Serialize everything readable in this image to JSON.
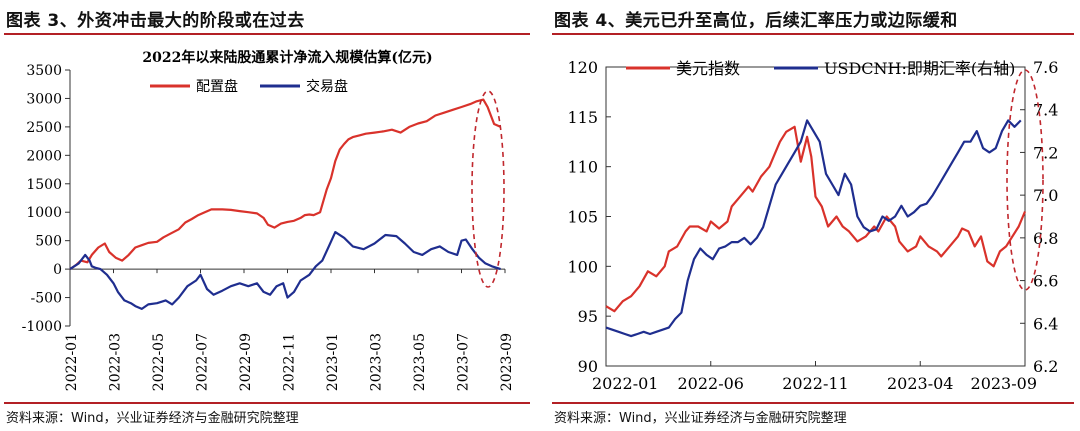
{
  "left": {
    "figure_title": "图表 3、外资冲击最大的阶段或在过去",
    "source": "资料来源：Wind，兴业证券经济与金融研究院整理"
  },
  "right": {
    "figure_title": "图表 4、美元已升至高位，后续汇率压力或边际缓和",
    "source": "资料来源：Wind，兴业证券经济与金融研究院整理"
  },
  "colors": {
    "red": "#d9322b",
    "blue": "#1f2e8f",
    "rule": "#b32025",
    "axis": "#333333"
  },
  "chart_data": [
    {
      "type": "line",
      "title": "2022年以来陆股通累计净流入规模估算(亿元)",
      "xlabel": "",
      "ylabel": "",
      "ylim": [
        -1000,
        3500
      ],
      "yticks": [
        -1000,
        -500,
        0,
        500,
        1000,
        1500,
        2000,
        2500,
        3000,
        3500
      ],
      "x_tick_labels": [
        "2022-01",
        "2022-03",
        "2022-05",
        "2022-07",
        "2022-09",
        "2022-11",
        "2023-01",
        "2023-03",
        "2023-05",
        "2023-07",
        "2023-09"
      ],
      "x_range_months": [
        0,
        20
      ],
      "legend": [
        "配置盘",
        "交易盘"
      ],
      "legend_position": "top-center",
      "annotation": "dashed ellipse highlighting recent period (2023-08 to 2023-09)",
      "series": [
        {
          "name": "配置盘",
          "color": "#d9322b",
          "x": [
            0,
            0.3,
            0.5,
            0.8,
            1.0,
            1.3,
            1.6,
            1.8,
            2.1,
            2.4,
            2.7,
            3.0,
            3.3,
            3.6,
            4.0,
            4.3,
            4.6,
            5.0,
            5.3,
            5.6,
            5.9,
            6.2,
            6.5,
            7.0,
            7.4,
            7.8,
            8.2,
            8.6,
            8.9,
            9.1,
            9.4,
            9.7,
            10.0,
            10.3,
            10.6,
            10.8,
            11.0,
            11.2,
            11.5,
            11.8,
            12.0,
            12.2,
            12.4,
            12.6,
            12.8,
            13.0,
            13.3,
            13.6,
            14.0,
            14.4,
            14.8,
            15.2,
            15.6,
            16.0,
            16.4,
            16.8,
            17.2,
            17.6,
            18.0,
            18.4,
            18.7,
            19.0,
            19.2,
            19.5,
            19.8
          ],
          "values": [
            0,
            80,
            150,
            120,
            250,
            380,
            450,
            300,
            200,
            150,
            250,
            380,
            420,
            460,
            480,
            560,
            620,
            700,
            820,
            880,
            950,
            1000,
            1050,
            1050,
            1040,
            1020,
            1000,
            980,
            900,
            780,
            730,
            800,
            830,
            850,
            900,
            950,
            960,
            950,
            1000,
            1400,
            1600,
            1900,
            2100,
            2200,
            2280,
            2320,
            2350,
            2380,
            2400,
            2420,
            2450,
            2400,
            2500,
            2560,
            2600,
            2700,
            2750,
            2800,
            2850,
            2900,
            2950,
            2980,
            2850,
            2550,
            2500
          ]
        },
        {
          "name": "交易盘",
          "color": "#1f2e8f",
          "x": [
            0,
            0.4,
            0.7,
            0.9,
            1.0,
            1.2,
            1.4,
            1.7,
            2.0,
            2.2,
            2.5,
            2.8,
            3.0,
            3.3,
            3.6,
            4.0,
            4.4,
            4.7,
            5.0,
            5.4,
            5.8,
            6.0,
            6.3,
            6.6,
            7.0,
            7.4,
            7.8,
            8.2,
            8.6,
            8.9,
            9.2,
            9.5,
            9.8,
            10.0,
            10.3,
            10.6,
            11.0,
            11.3,
            11.6,
            11.9,
            12.2,
            12.6,
            13.0,
            13.5,
            14.0,
            14.5,
            15.0,
            15.4,
            15.8,
            16.2,
            16.6,
            17.0,
            17.4,
            17.8,
            18.0,
            18.2,
            18.5,
            18.8,
            19.1,
            19.4,
            19.8
          ],
          "values": [
            0,
            100,
            250,
            150,
            50,
            20,
            0,
            -100,
            -250,
            -400,
            -550,
            -600,
            -650,
            -700,
            -620,
            -600,
            -550,
            -620,
            -500,
            -300,
            -200,
            -100,
            -350,
            -450,
            -380,
            -300,
            -250,
            -300,
            -250,
            -400,
            -450,
            -300,
            -250,
            -500,
            -400,
            -200,
            -100,
            50,
            150,
            400,
            650,
            550,
            400,
            350,
            450,
            600,
            580,
            450,
            300,
            250,
            350,
            400,
            300,
            250,
            500,
            520,
            350,
            200,
            100,
            50,
            0
          ]
        }
      ]
    },
    {
      "type": "line",
      "title": "",
      "xlabel": "",
      "ylabel": "",
      "y2label": "",
      "ylim": [
        90,
        120
      ],
      "yticks": [
        90,
        95,
        100,
        105,
        110,
        115,
        120
      ],
      "y2lim": [
        6.2,
        7.6
      ],
      "y2ticks": [
        6.2,
        6.4,
        6.6,
        6.8,
        7.0,
        7.2,
        7.4,
        7.6
      ],
      "x_tick_labels": [
        "2022-01",
        "2022-06",
        "2022-11",
        "2023-04",
        "2023-09"
      ],
      "x_range_months": [
        0,
        20
      ],
      "legend": [
        "美元指数",
        "USDCNH:即期汇率(右轴)"
      ],
      "legend_position": "top-center",
      "annotation": "dashed ellipse highlighting recent period (2023-08 to 2023-09)",
      "series": [
        {
          "name": "美元指数",
          "axis": "left",
          "color": "#d9322b",
          "x": [
            0,
            0.4,
            0.8,
            1.2,
            1.6,
            2.0,
            2.4,
            2.8,
            3.0,
            3.4,
            3.8,
            4.0,
            4.4,
            4.8,
            5.0,
            5.4,
            5.8,
            6.0,
            6.4,
            6.8,
            7.0,
            7.4,
            7.8,
            8.0,
            8.3,
            8.6,
            9.0,
            9.3,
            9.6,
            9.8,
            10.0,
            10.3,
            10.6,
            11.0,
            11.3,
            11.6,
            12.0,
            12.4,
            12.8,
            13.0,
            13.4,
            13.8,
            14.0,
            14.4,
            14.8,
            15.0,
            15.4,
            15.8,
            16.0,
            16.4,
            16.8,
            17.0,
            17.3,
            17.6,
            17.9,
            18.2,
            18.5,
            18.8,
            19.1,
            19.4,
            19.7,
            20.0
          ],
          "values": [
            96,
            95.5,
            96.5,
            97,
            98,
            99.5,
            99,
            100,
            101.5,
            102,
            103.5,
            104,
            104,
            103.5,
            104.5,
            103.8,
            104.5,
            106,
            107,
            108,
            107.5,
            109,
            110,
            111,
            112.5,
            113.5,
            114,
            110.5,
            113,
            111,
            107,
            106,
            104,
            105,
            104,
            103.5,
            102.5,
            103,
            104,
            103.5,
            105,
            104,
            102.5,
            101.5,
            102,
            103,
            102,
            101.5,
            101,
            102,
            103,
            103.8,
            103.5,
            102,
            103,
            100.5,
            100,
            101.5,
            102,
            103,
            104,
            105.5
          ]
        },
        {
          "name": "USDCNH:即期汇率(右轴)",
          "axis": "right",
          "color": "#1f2e8f",
          "x": [
            0,
            0.3,
            0.6,
            0.9,
            1.2,
            1.5,
            1.8,
            2.1,
            2.4,
            2.7,
            3.0,
            3.3,
            3.6,
            3.9,
            4.2,
            4.5,
            4.8,
            5.1,
            5.4,
            5.7,
            6.0,
            6.3,
            6.6,
            6.9,
            7.2,
            7.5,
            7.8,
            8.1,
            8.4,
            8.7,
            9.0,
            9.3,
            9.6,
            9.9,
            10.2,
            10.5,
            10.8,
            11.1,
            11.4,
            11.7,
            12.0,
            12.3,
            12.6,
            12.9,
            13.2,
            13.5,
            13.8,
            14.1,
            14.4,
            14.7,
            15.0,
            15.3,
            15.6,
            15.9,
            16.2,
            16.5,
            16.8,
            17.1,
            17.4,
            17.7,
            18.0,
            18.3,
            18.6,
            18.9,
            19.2,
            19.5,
            19.8
          ],
          "values": [
            6.38,
            6.37,
            6.36,
            6.35,
            6.34,
            6.35,
            6.36,
            6.35,
            6.36,
            6.37,
            6.38,
            6.42,
            6.45,
            6.6,
            6.7,
            6.75,
            6.72,
            6.7,
            6.75,
            6.76,
            6.78,
            6.78,
            6.8,
            6.77,
            6.8,
            6.85,
            6.95,
            7.05,
            7.1,
            7.15,
            7.2,
            7.25,
            7.35,
            7.3,
            7.25,
            7.1,
            7.05,
            7.0,
            7.1,
            7.05,
            6.9,
            6.85,
            6.83,
            6.84,
            6.9,
            6.88,
            6.9,
            6.95,
            6.9,
            6.92,
            6.95,
            6.96,
            7.0,
            7.05,
            7.1,
            7.15,
            7.2,
            7.25,
            7.25,
            7.3,
            7.22,
            7.2,
            7.22,
            7.3,
            7.35,
            7.32,
            7.35
          ]
        }
      ]
    }
  ]
}
